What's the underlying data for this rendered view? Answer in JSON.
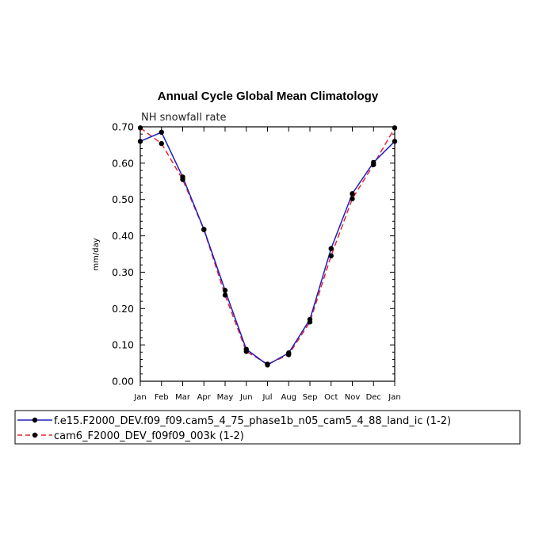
{
  "chart_data": {
    "type": "line",
    "title": "Annual Cycle Global Mean Climatology",
    "subtitle": "NH snowfall rate",
    "xlabel": "",
    "ylabel": "mm/day",
    "categories": [
      "Jan",
      "Feb",
      "Mar",
      "Apr",
      "May",
      "Jun",
      "Jul",
      "Aug",
      "Sep",
      "Oct",
      "Nov",
      "Dec",
      "Jan"
    ],
    "ylim": [
      0,
      0.7
    ],
    "yticks": [
      "0.00",
      "0.10",
      "0.20",
      "0.30",
      "0.40",
      "0.50",
      "0.60",
      "0.70"
    ],
    "grid": false,
    "legend_position": "bottom",
    "series": [
      {
        "name": "f.e15.F2000_DEV.f09_f09.cam5_4_75_phase1b_n05_cam5_4_88_land_ic (1-2)",
        "color": "#1f1fbf",
        "style": "solid",
        "values": [
          0.66,
          0.685,
          0.562,
          0.418,
          0.25,
          0.088,
          0.045,
          0.078,
          0.17,
          0.365,
          0.516,
          0.602,
          0.66
        ]
      },
      {
        "name": "cam6_F2000_DEV_f09f09_003k (1-2)",
        "color": "#e8242b",
        "style": "dashed",
        "values": [
          0.697,
          0.654,
          0.555,
          0.417,
          0.237,
          0.082,
          0.047,
          0.073,
          0.163,
          0.345,
          0.502,
          0.596,
          0.697
        ]
      }
    ]
  }
}
